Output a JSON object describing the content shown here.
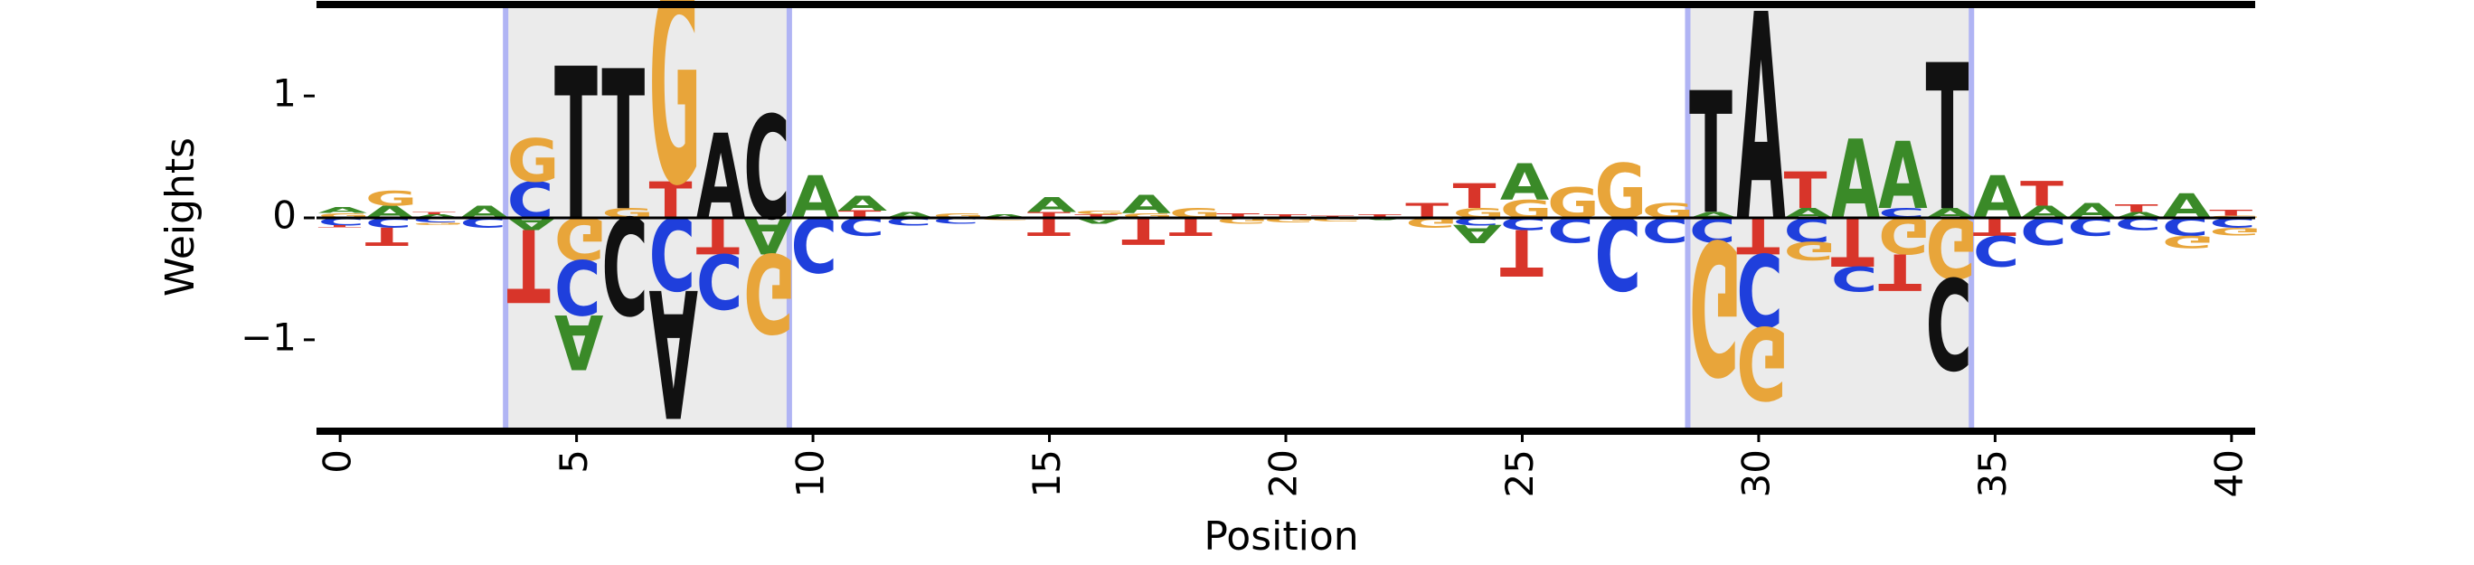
{
  "chart_data": {
    "type": "logo",
    "xlabel": "Position",
    "ylabel": "Weights",
    "xlim": [
      -0.5,
      40.5
    ],
    "ylim": [
      -1.75,
      1.75
    ],
    "x_ticks": [
      0,
      5,
      10,
      15,
      20,
      25,
      30,
      35,
      40
    ],
    "x_tick_labels": [
      "0",
      "5",
      "10",
      "15",
      "20",
      "25",
      "30",
      "35",
      "40"
    ],
    "y_ticks": [
      -1,
      0,
      1
    ],
    "y_tick_labels": [
      "−1",
      "0",
      "1"
    ],
    "grid": false,
    "legend": "none",
    "highlighted_ranges": [
      [
        3.5,
        9.5
      ],
      [
        28.5,
        34.5
      ]
    ],
    "colors": {
      "A": "#3a8a28",
      "C": "#1f3fdc",
      "G": "#e8a53a",
      "T": "#d8352a",
      "T_strong": "#111111",
      "A_strong": "#111111",
      "C_strong": "#111111",
      "G_strong": "#111111",
      "highlight_fill": "#ebebeb",
      "highlight_edge": "#b0b4f4"
    },
    "positions": [
      {
        "x": 0,
        "pos": [
          [
            "G",
            0.04
          ],
          [
            "A",
            0.05
          ]
        ],
        "neg": [
          [
            "C",
            0.06
          ],
          [
            "T",
            0.02
          ]
        ]
      },
      {
        "x": 1,
        "pos": [
          [
            "A",
            0.1
          ],
          [
            "G",
            0.12
          ]
        ],
        "neg": [
          [
            "C",
            0.08
          ],
          [
            "T",
            0.15
          ]
        ]
      },
      {
        "x": 2,
        "pos": [
          [
            "A",
            0.03
          ],
          [
            "T",
            0.02
          ]
        ],
        "neg": [
          [
            "C",
            0.04
          ],
          [
            "G",
            0.02
          ]
        ]
      },
      {
        "x": 3,
        "pos": [
          [
            "A",
            0.1
          ]
        ],
        "neg": [
          [
            "C",
            0.08
          ]
        ]
      },
      {
        "x": 4,
        "pos": [
          [
            "C",
            0.3
          ],
          [
            "G",
            0.35
          ]
        ],
        "neg": [
          [
            "A",
            0.1
          ],
          [
            "T",
            0.6
          ]
        ]
      },
      {
        "x": 5,
        "pos": [
          [
            "T",
            1.25
          ]
        ],
        "neg": [
          [
            "G",
            0.35
          ],
          [
            "C",
            0.45
          ],
          [
            "A",
            0.45
          ]
        ]
      },
      {
        "x": 6,
        "pos": [
          [
            "G",
            0.08
          ],
          [
            "T",
            1.15
          ]
        ],
        "neg": [
          [
            "C",
            0.8
          ]
        ]
      },
      {
        "x": 7,
        "pos": [
          [
            "T",
            0.3
          ],
          [
            "G",
            1.65
          ]
        ],
        "neg": [
          [
            "C",
            0.6
          ],
          [
            "A",
            1.05
          ]
        ]
      },
      {
        "x": 8,
        "pos": [
          [
            "A",
            0.7
          ]
        ],
        "neg": [
          [
            "T",
            0.3
          ],
          [
            "C",
            0.45
          ]
        ]
      },
      {
        "x": 9,
        "pos": [
          [
            "C",
            0.85
          ]
        ],
        "neg": [
          [
            "A",
            0.3
          ],
          [
            "G",
            0.65
          ]
        ]
      },
      {
        "x": 10,
        "pos": [
          [
            "A",
            0.35
          ]
        ],
        "neg": [
          [
            "C",
            0.45
          ]
        ]
      },
      {
        "x": 11,
        "pos": [
          [
            "T",
            0.06
          ],
          [
            "A",
            0.12
          ]
        ],
        "neg": [
          [
            "C",
            0.15
          ]
        ]
      },
      {
        "x": 12,
        "pos": [
          [
            "A",
            0.05
          ]
        ],
        "neg": [
          [
            "C",
            0.06
          ]
        ]
      },
      {
        "x": 13,
        "pos": [
          [
            "G",
            0.04
          ]
        ],
        "neg": [
          [
            "C",
            0.05
          ]
        ]
      },
      {
        "x": 14,
        "pos": [
          [
            "A",
            0.03
          ]
        ],
        "neg": [
          [
            "G",
            0.02
          ]
        ]
      },
      {
        "x": 15,
        "pos": [
          [
            "T",
            0.05
          ],
          [
            "A",
            0.12
          ]
        ],
        "neg": [
          [
            "T",
            0.15
          ]
        ]
      },
      {
        "x": 16,
        "pos": [
          [
            "T",
            0.03
          ],
          [
            "G",
            0.03
          ]
        ],
        "neg": [
          [
            "A",
            0.05
          ]
        ]
      },
      {
        "x": 17,
        "pos": [
          [
            "G",
            0.04
          ],
          [
            "A",
            0.15
          ]
        ],
        "neg": [
          [
            "T",
            0.22
          ]
        ]
      },
      {
        "x": 18,
        "pos": [
          [
            "G",
            0.08
          ]
        ],
        "neg": [
          [
            "T",
            0.15
          ]
        ]
      },
      {
        "x": 19,
        "pos": [
          [
            "T",
            0.04
          ]
        ],
        "neg": [
          [
            "G",
            0.05
          ]
        ]
      },
      {
        "x": 20,
        "pos": [
          [
            "T",
            0.03
          ]
        ],
        "neg": [
          [
            "G",
            0.04
          ]
        ]
      },
      {
        "x": 21,
        "pos": [
          [
            "T",
            0.02
          ]
        ],
        "neg": [
          [
            "G",
            0.03
          ]
        ]
      },
      {
        "x": 22,
        "pos": [
          [
            "T",
            0.03
          ]
        ],
        "neg": [
          [
            "A",
            0.02
          ]
        ]
      },
      {
        "x": 23,
        "pos": [
          [
            "T",
            0.12
          ]
        ],
        "neg": [
          [
            "G",
            0.08
          ]
        ]
      },
      {
        "x": 24,
        "pos": [
          [
            "G",
            0.08
          ],
          [
            "T",
            0.2
          ]
        ],
        "neg": [
          [
            "C",
            0.06
          ],
          [
            "A",
            0.15
          ]
        ]
      },
      {
        "x": 25,
        "pos": [
          [
            "G",
            0.15
          ],
          [
            "A",
            0.3
          ]
        ],
        "neg": [
          [
            "C",
            0.1
          ],
          [
            "T",
            0.38
          ]
        ]
      },
      {
        "x": 26,
        "pos": [
          [
            "G",
            0.25
          ]
        ],
        "neg": [
          [
            "C",
            0.2
          ]
        ]
      },
      {
        "x": 27,
        "pos": [
          [
            "G",
            0.45
          ]
        ],
        "neg": [
          [
            "C",
            0.6
          ]
        ]
      },
      {
        "x": 28,
        "pos": [
          [
            "G",
            0.12
          ]
        ],
        "neg": [
          [
            "C",
            0.2
          ]
        ]
      },
      {
        "x": 29,
        "pos": [
          [
            "A",
            0.05
          ],
          [
            "T",
            1.0
          ]
        ],
        "neg": [
          [
            "C",
            0.2
          ],
          [
            "G",
            1.1
          ]
        ]
      },
      {
        "x": 30,
        "pos": [
          [
            "A",
            1.7
          ]
        ],
        "neg": [
          [
            "T",
            0.3
          ],
          [
            "C",
            0.6
          ],
          [
            "G",
            0.6
          ]
        ]
      },
      {
        "x": 31,
        "pos": [
          [
            "A",
            0.08
          ],
          [
            "T",
            0.3
          ]
        ],
        "neg": [
          [
            "C",
            0.2
          ],
          [
            "G",
            0.15
          ]
        ]
      },
      {
        "x": 32,
        "pos": [
          [
            "A",
            0.65
          ]
        ],
        "neg": [
          [
            "T",
            0.4
          ],
          [
            "C",
            0.2
          ]
        ]
      },
      {
        "x": 33,
        "pos": [
          [
            "C",
            0.08
          ],
          [
            "A",
            0.55
          ]
        ],
        "neg": [
          [
            "G",
            0.3
          ],
          [
            "T",
            0.3
          ]
        ]
      },
      {
        "x": 34,
        "pos": [
          [
            "A",
            0.08
          ],
          [
            "T",
            1.2
          ]
        ],
        "neg": [
          [
            "G",
            0.5
          ],
          [
            "C",
            0.75
          ]
        ]
      },
      {
        "x": 35,
        "pos": [
          [
            "A",
            0.35
          ]
        ],
        "neg": [
          [
            "T",
            0.15
          ],
          [
            "C",
            0.25
          ]
        ]
      },
      {
        "x": 36,
        "pos": [
          [
            "A",
            0.1
          ],
          [
            "T",
            0.2
          ]
        ],
        "neg": [
          [
            "C",
            0.22
          ]
        ]
      },
      {
        "x": 37,
        "pos": [
          [
            "A",
            0.12
          ]
        ],
        "neg": [
          [
            "C",
            0.15
          ]
        ]
      },
      {
        "x": 38,
        "pos": [
          [
            "A",
            0.05
          ],
          [
            "T",
            0.06
          ]
        ],
        "neg": [
          [
            "C",
            0.1
          ]
        ]
      },
      {
        "x": 39,
        "pos": [
          [
            "A",
            0.2
          ]
        ],
        "neg": [
          [
            "C",
            0.15
          ],
          [
            "G",
            0.1
          ]
        ]
      },
      {
        "x": 40,
        "pos": [
          [
            "G",
            0.02
          ],
          [
            "T",
            0.05
          ]
        ],
        "neg": [
          [
            "C",
            0.08
          ],
          [
            "G",
            0.06
          ]
        ]
      }
    ]
  }
}
